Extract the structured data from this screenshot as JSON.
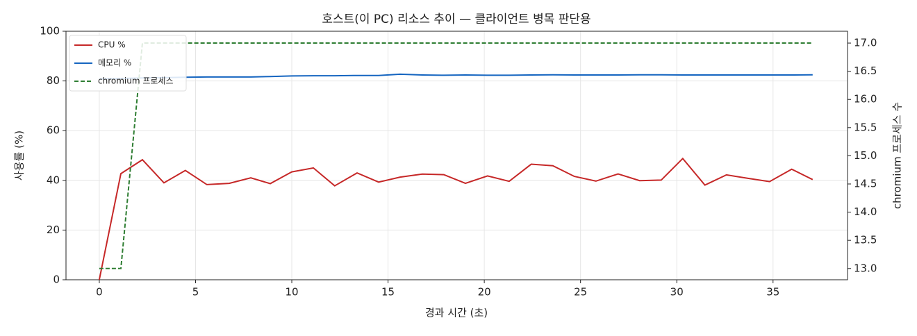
{
  "chart_data": {
    "type": "line",
    "title": "호스트(이 PC) 리소스 추이 — 클라이언트 병목 판단용",
    "x_label": "경과 시간 (초)",
    "y_label": "사용률 (%)",
    "y2_label": "chromium 프로세스 수",
    "x": [
      0,
      1.12,
      2.24,
      3.36,
      4.47,
      5.59,
      6.75,
      7.87,
      8.88,
      10.0,
      11.12,
      12.23,
      13.39,
      14.51,
      15.63,
      16.78,
      17.9,
      19.02,
      20.17,
      21.29,
      22.44,
      23.56,
      24.68,
      25.8,
      26.95,
      28.07,
      29.19,
      30.31,
      31.46,
      32.58,
      33.7,
      34.82,
      35.97,
      37.06
    ],
    "series": [
      {
        "name": "CPU %",
        "color": "#c62828",
        "dash": false,
        "axis": "y",
        "values": [
          0,
          42.7,
          48.3,
          39,
          44,
          38.3,
          38.8,
          41,
          38.7,
          43.4,
          45,
          37.8,
          43,
          39.3,
          41.3,
          42.5,
          42.3,
          38.8,
          41.8,
          39.6,
          46.5,
          45.9,
          41.6,
          39.7,
          42.6,
          39.9,
          40.1,
          48.8,
          38.1,
          42.2,
          40.8,
          39.5,
          44.5,
          40.3
        ]
      },
      {
        "name": "메모리 %",
        "color": "#1565c0",
        "dash": false,
        "axis": "y",
        "values": [
          80.8,
          81.0,
          81.2,
          81.3,
          81.5,
          81.6,
          81.6,
          81.6,
          81.8,
          82.0,
          82.1,
          82.1,
          82.2,
          82.2,
          82.7,
          82.4,
          82.3,
          82.4,
          82.3,
          82.3,
          82.4,
          82.5,
          82.4,
          82.4,
          82.4,
          82.5,
          82.5,
          82.4,
          82.4,
          82.4,
          82.4,
          82.4,
          82.4,
          82.5
        ]
      },
      {
        "name": "chromium 프로세스",
        "color": "#2e7d32",
        "dash": true,
        "axis": "y2",
        "values": [
          13,
          13,
          17,
          17,
          17,
          17,
          17,
          17,
          17,
          17,
          17,
          17,
          17,
          17,
          17,
          17,
          17,
          17,
          17,
          17,
          17,
          17,
          17,
          17,
          17,
          17,
          17,
          17,
          17,
          17,
          17,
          17,
          17,
          17
        ]
      }
    ],
    "xlim": [
      -1.73,
      38.87
    ],
    "xticks": [
      0,
      5,
      10,
      15,
      20,
      25,
      30,
      35
    ],
    "ylim": [
      0,
      100
    ],
    "yticks": [
      0,
      20,
      40,
      60,
      80,
      100
    ],
    "y2lim": [
      12.8,
      17.21
    ],
    "y2ticks": [
      {
        "value": 13,
        "label": "13.0"
      },
      {
        "value": 13.5,
        "label": "13.5"
      },
      {
        "value": 14,
        "label": "14.0"
      },
      {
        "value": 14.5,
        "label": "14.5"
      },
      {
        "value": 15,
        "label": "15.0"
      },
      {
        "value": 15.5,
        "label": "15.5"
      },
      {
        "value": 16,
        "label": "16.0"
      },
      {
        "value": 16.5,
        "label": "16.5"
      },
      {
        "value": 17,
        "label": "17.0"
      }
    ],
    "grid": true,
    "legend": "upper left"
  }
}
